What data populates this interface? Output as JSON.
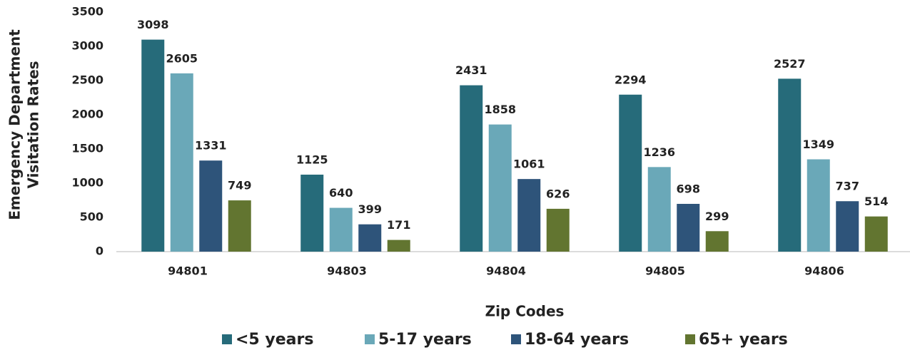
{
  "chart_data": {
    "type": "bar",
    "x_label": "Zip Codes",
    "y_label": [
      "Emergency Department",
      "Visitation Rates"
    ],
    "categories": [
      "94801",
      "94803",
      "94804",
      "94805",
      "94806"
    ],
    "series": [
      {
        "name": "<5 years",
        "color": "#266b7a",
        "values": [
          3098,
          1125,
          2431,
          2294,
          2527
        ]
      },
      {
        "name": "5-17 years",
        "color": "#6aa8b8",
        "values": [
          2605,
          640,
          1858,
          1236,
          1349
        ]
      },
      {
        "name": "18-64 years",
        "color": "#2e547a",
        "values": [
          1331,
          399,
          1061,
          698,
          737
        ]
      },
      {
        "name": "65+ years",
        "color": "#627530",
        "values": [
          749,
          171,
          626,
          299,
          514
        ]
      }
    ],
    "ylim": [
      0,
      3500
    ],
    "yticks": [
      0,
      500,
      1000,
      1500,
      2000,
      2500,
      3000,
      3500
    ],
    "grid": false,
    "legend": "bottom"
  }
}
